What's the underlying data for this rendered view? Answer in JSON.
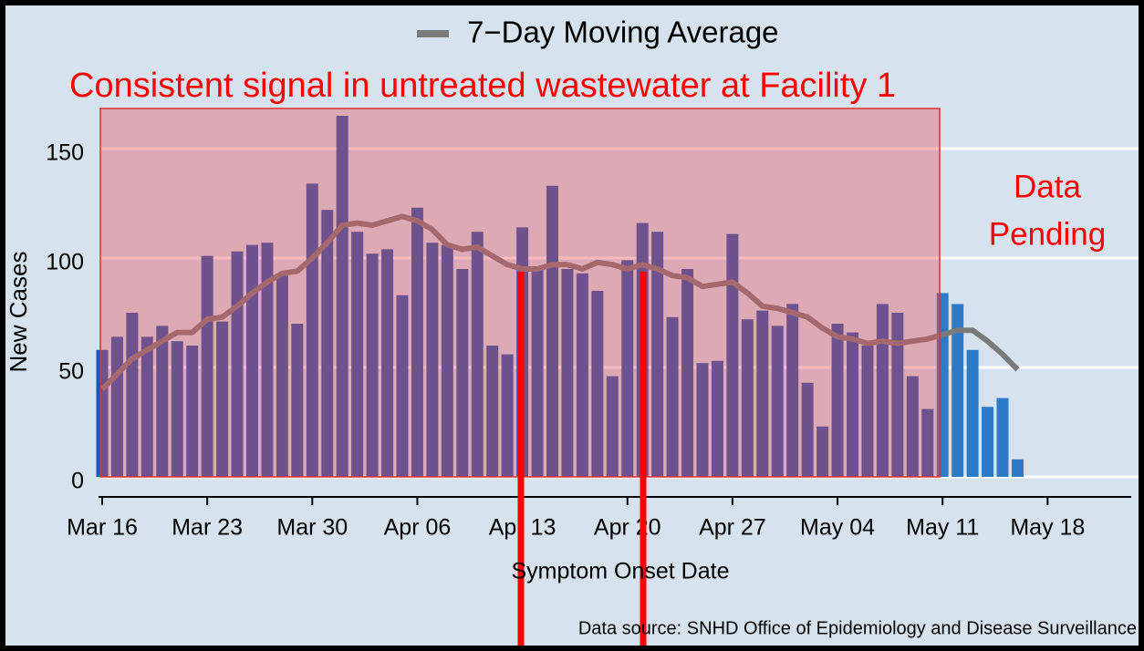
{
  "chart_data": {
    "type": "bar",
    "annotation": "Consistent signal in untreated wastewater at Facility 1",
    "pending_label": [
      "Data",
      "Pending"
    ],
    "y_label": "New Cases",
    "x_label": "Symptom Onset Date",
    "source": "Data source: SNHD Office of Epidemiology and Disease Surveillance",
    "categories": [
      "Mar 16",
      null,
      null,
      null,
      null,
      null,
      null,
      "Mar 23",
      null,
      null,
      null,
      null,
      null,
      null,
      "Mar 30",
      null,
      null,
      null,
      null,
      null,
      null,
      "Apr 06",
      null,
      null,
      null,
      null,
      null,
      null,
      "Apr 13",
      null,
      null,
      null,
      null,
      null,
      null,
      "Apr 20",
      null,
      null,
      null,
      null,
      null,
      null,
      "Apr 27",
      null,
      null,
      null,
      null,
      null,
      null,
      "May 04",
      null,
      null,
      null,
      null,
      null,
      null,
      "May 11",
      null,
      null,
      null,
      null,
      null,
      null,
      "May 18"
    ],
    "values": [
      58,
      64,
      75,
      64,
      69,
      62,
      60,
      101,
      71,
      103,
      106,
      107,
      92,
      70,
      134,
      122,
      165,
      112,
      102,
      104,
      83,
      123,
      107,
      106,
      95,
      112,
      60,
      56,
      114,
      96,
      133,
      95,
      93,
      85,
      46,
      99,
      116,
      112,
      73,
      95,
      52,
      53,
      111,
      72,
      76,
      69,
      79,
      43,
      23,
      70,
      66,
      60,
      79,
      75,
      46,
      31,
      84,
      79,
      58,
      32,
      36,
      8,
      null,
      null
    ],
    "colors": [
      "#1f56b0",
      "#1f56b0",
      "#1f56b0",
      "#1f56b0",
      "#1f56b0",
      "#1f56b0",
      "#1f56b0",
      "#1f56b0",
      "#1f56b0",
      "#1f56b0",
      "#1f56b0",
      "#1f56b0",
      "#1f56b0",
      "#1f56b0",
      "#1f56b0",
      "#1f56b0",
      "#1f56b0",
      "#1f56b0",
      "#1f56b0",
      "#1f56b0",
      "#1f56b0",
      "#1f56b0",
      "#1f56b0",
      "#1f56b0",
      "#1f56b0",
      "#1f56b0",
      "#1f56b0",
      "#1f56b0",
      "#1f56b0",
      "#1f56b0",
      "#1f56b0",
      "#1f56b0",
      "#1f56b0",
      "#1f56b0",
      "#1f56b0",
      "#1f56b0",
      "#1f56b0",
      "#1f56b0",
      "#1f56b0",
      "#1f56b0",
      "#1f56b0",
      "#1f56b0",
      "#1f56b0",
      "#1f56b0",
      "#1f56b0",
      "#1f56b0",
      "#1f56b0",
      "#1f56b0",
      "#1f56b0",
      "#1f56b0",
      "#1f56b0",
      "#1f56b0",
      "#1f56b0",
      "#1f56b0",
      "#1f56b0",
      "#1f56b0",
      "#2b7bc8",
      "#2b7bc8",
      "#2b7bc8",
      "#2b7bc8",
      "#2b7bc8",
      "#2b7bc8",
      "#2b7bc8",
      "#2b7bc8"
    ],
    "series": [
      {
        "name": "7−Day Moving Average",
        "color": "#7a7a7a",
        "values": [
          40,
          47,
          54,
          58,
          62,
          66,
          66,
          72,
          73,
          78,
          84,
          89,
          93,
          94,
          100,
          107,
          115,
          116,
          115,
          117,
          119,
          117,
          113,
          106,
          104,
          105,
          101,
          97,
          95,
          95,
          97,
          97,
          95,
          98,
          97,
          95,
          97,
          95,
          92,
          91,
          87,
          88,
          89,
          84,
          78,
          77,
          75,
          73,
          68,
          64,
          63,
          61,
          62,
          61,
          62,
          63,
          65,
          67,
          67,
          62,
          56,
          49,
          null,
          null
        ]
      }
    ],
    "ylim": [
      0,
      150
    ],
    "yticks": [
      0,
      50,
      100,
      150
    ],
    "grid": true
  }
}
